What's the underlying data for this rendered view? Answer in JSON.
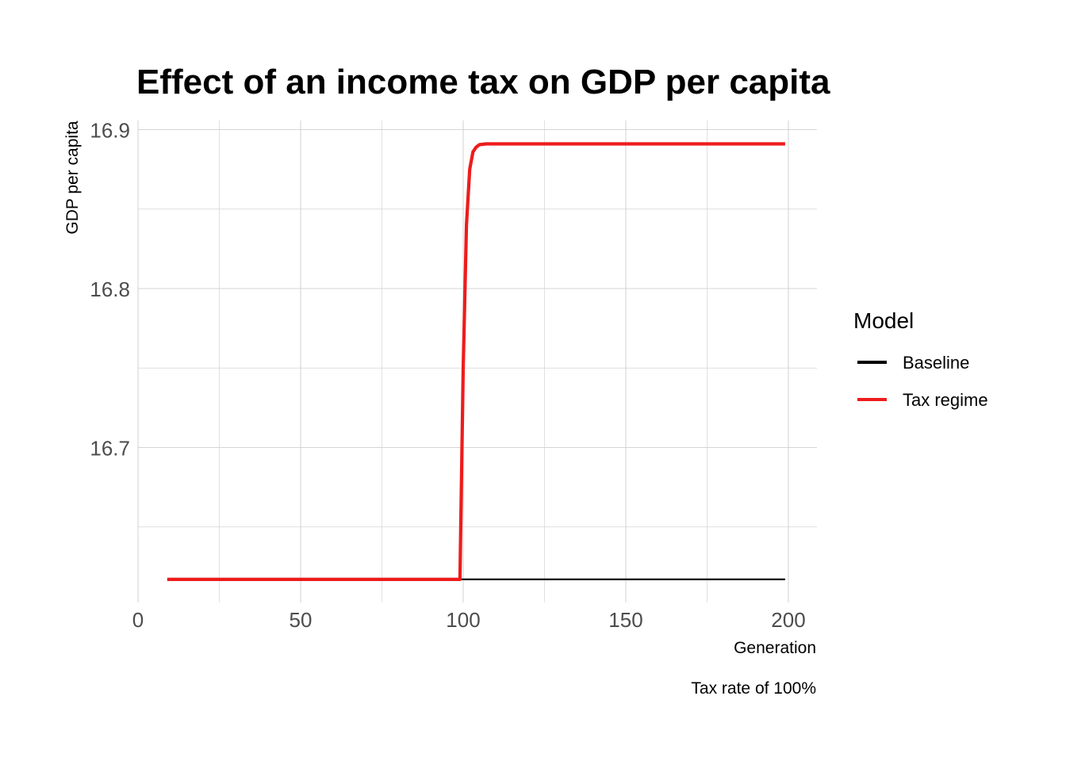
{
  "chart_data": {
    "type": "line",
    "title": "Effect of an income tax on GDP per capita",
    "xlabel": "Generation",
    "ylabel": "GDP per capita",
    "caption": "Tax rate of 100%",
    "xlim": [
      0,
      200
    ],
    "ylim": [
      16.615,
      16.905
    ],
    "x_ticks": [
      0,
      50,
      100,
      150,
      200
    ],
    "y_ticks": [
      16.7,
      16.8,
      16.9
    ],
    "grid": true,
    "legend": {
      "title": "Model",
      "position": "right",
      "entries": [
        "Baseline",
        "Tax regime"
      ]
    },
    "series": [
      {
        "name": "Baseline",
        "color": "#000000",
        "x": [
          9,
          199
        ],
        "y": [
          16.617,
          16.617
        ]
      },
      {
        "name": "Tax regime",
        "color": "#ee1c1c",
        "x": [
          9,
          99,
          100,
          101,
          102,
          103,
          104,
          105,
          107,
          110,
          199
        ],
        "y": [
          16.617,
          16.617,
          16.75,
          16.84,
          16.875,
          16.886,
          16.889,
          16.8905,
          16.891,
          16.891,
          16.891
        ]
      }
    ]
  }
}
